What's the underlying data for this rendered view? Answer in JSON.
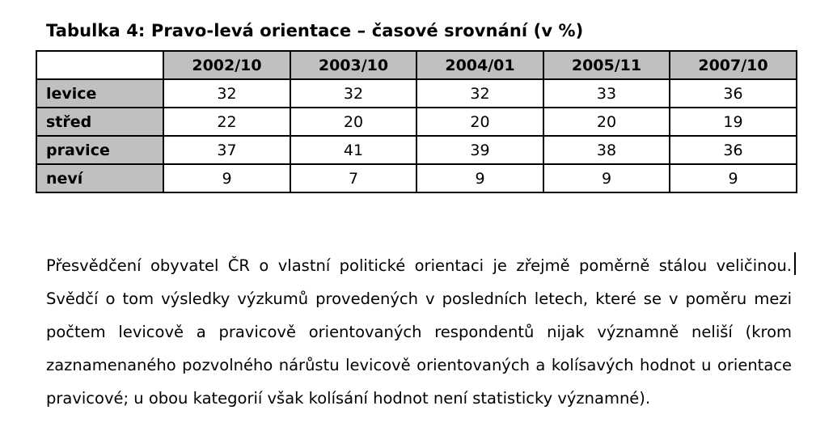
{
  "table": {
    "caption": "Tabulka 4: Pravo-levá orientace – časové srovnání (v %)",
    "columns": [
      "2002/10",
      "2003/10",
      "2004/01",
      "2005/11",
      "2007/10"
    ],
    "rows": [
      {
        "label": "levice",
        "values": [
          "32",
          "32",
          "32",
          "33",
          "36"
        ]
      },
      {
        "label": "střed",
        "values": [
          "22",
          "20",
          "20",
          "20",
          "19"
        ]
      },
      {
        "label": "pravice",
        "values": [
          "37",
          "41",
          "39",
          "38",
          "36"
        ]
      },
      {
        "label": "neví",
        "values": [
          "9",
          "7",
          "9",
          "9",
          "9"
        ]
      }
    ]
  },
  "paragraph": "Přesvědčení obyvatel ČR o vlastní politické orientaci je zřejmě poměrně stálou veličinou. Svědčí o tom výsledky výzkumů provedených v posledních letech, které se v poměru mezi počtem levicově a pravicově orientovaných respondentů nijak významně neliší (krom zaznamenaného pozvolného nárůstu levicově orientovaných a kolísavých hodnot u orientace pravicové; u obou kategorií však kolísání hodnot není statisticky významné)."
}
